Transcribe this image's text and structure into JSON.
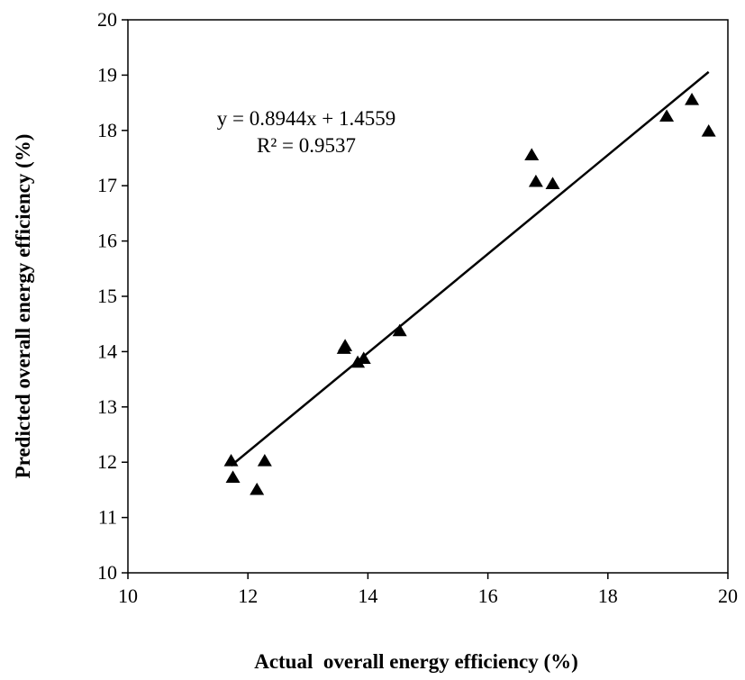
{
  "chart_data": {
    "type": "scatter",
    "title": "",
    "xlabel": "Actual  overall energy efficiency (%)",
    "ylabel": "Predicted overall energy efficiency (%)",
    "xlim": [
      10,
      20
    ],
    "ylim": [
      10,
      20
    ],
    "xticks": [
      10,
      12,
      14,
      16,
      18,
      20
    ],
    "yticks": [
      10,
      11,
      12,
      13,
      14,
      15,
      16,
      17,
      18,
      19,
      20
    ],
    "grid": false,
    "legend": "none",
    "marker": "triangle",
    "marker_color": "#000000",
    "points": [
      {
        "x": 11.72,
        "y": 12.02
      },
      {
        "x": 11.75,
        "y": 11.72
      },
      {
        "x": 12.15,
        "y": 11.5
      },
      {
        "x": 12.28,
        "y": 12.02
      },
      {
        "x": 13.6,
        "y": 14.05
      },
      {
        "x": 13.62,
        "y": 14.1
      },
      {
        "x": 13.83,
        "y": 13.8
      },
      {
        "x": 13.93,
        "y": 13.87
      },
      {
        "x": 14.53,
        "y": 14.37
      },
      {
        "x": 16.73,
        "y": 17.55
      },
      {
        "x": 16.8,
        "y": 17.07
      },
      {
        "x": 17.08,
        "y": 17.03
      },
      {
        "x": 18.98,
        "y": 18.25
      },
      {
        "x": 19.4,
        "y": 18.55
      },
      {
        "x": 19.68,
        "y": 17.98
      }
    ],
    "trendline": {
      "type": "linear",
      "slope": 0.8944,
      "intercept": 1.4559,
      "x_range": [
        11.72,
        19.68
      ]
    },
    "annotations": [
      "y = 0.8944x + 1.4559",
      "R² = 0.9537"
    ]
  }
}
